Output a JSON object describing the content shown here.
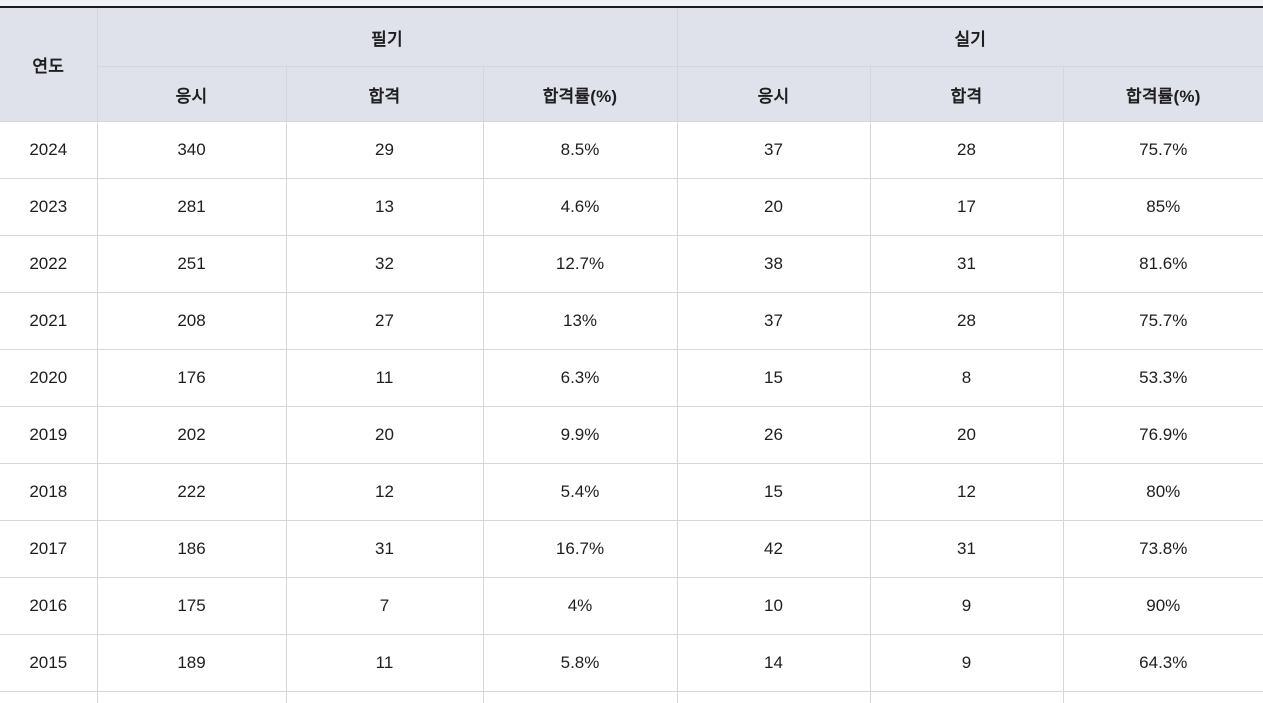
{
  "colors": {
    "page_background": "#f0f1f5",
    "header_background": "#e0e2eb",
    "top_border": "#1b1b1d",
    "grid_border": "#d6d7db",
    "row_background": "#ffffff",
    "text": "#1e1e20"
  },
  "table": {
    "year_header": "연도",
    "written_header": "필기",
    "practical_header": "실기",
    "sub_headers": {
      "applicants": "응시",
      "passed": "합격",
      "pass_rate": "합격률(%)"
    },
    "rows": [
      {
        "year": "2024",
        "w_app": "340",
        "w_pass": "29",
        "w_rate": "8.5%",
        "p_app": "37",
        "p_pass": "28",
        "p_rate": "75.7%"
      },
      {
        "year": "2023",
        "w_app": "281",
        "w_pass": "13",
        "w_rate": "4.6%",
        "p_app": "20",
        "p_pass": "17",
        "p_rate": "85%"
      },
      {
        "year": "2022",
        "w_app": "251",
        "w_pass": "32",
        "w_rate": "12.7%",
        "p_app": "38",
        "p_pass": "31",
        "p_rate": "81.6%"
      },
      {
        "year": "2021",
        "w_app": "208",
        "w_pass": "27",
        "w_rate": "13%",
        "p_app": "37",
        "p_pass": "28",
        "p_rate": "75.7%"
      },
      {
        "year": "2020",
        "w_app": "176",
        "w_pass": "11",
        "w_rate": "6.3%",
        "p_app": "15",
        "p_pass": "8",
        "p_rate": "53.3%"
      },
      {
        "year": "2019",
        "w_app": "202",
        "w_pass": "20",
        "w_rate": "9.9%",
        "p_app": "26",
        "p_pass": "20",
        "p_rate": "76.9%"
      },
      {
        "year": "2018",
        "w_app": "222",
        "w_pass": "12",
        "w_rate": "5.4%",
        "p_app": "15",
        "p_pass": "12",
        "p_rate": "80%"
      },
      {
        "year": "2017",
        "w_app": "186",
        "w_pass": "31",
        "w_rate": "16.7%",
        "p_app": "42",
        "p_pass": "31",
        "p_rate": "73.8%"
      },
      {
        "year": "2016",
        "w_app": "175",
        "w_pass": "7",
        "w_rate": "4%",
        "p_app": "10",
        "p_pass": "9",
        "p_rate": "90%"
      },
      {
        "year": "2015",
        "w_app": "189",
        "w_pass": "11",
        "w_rate": "5.8%",
        "p_app": "14",
        "p_pass": "9",
        "p_rate": "64.3%"
      }
    ],
    "partial_row_visible": true
  }
}
